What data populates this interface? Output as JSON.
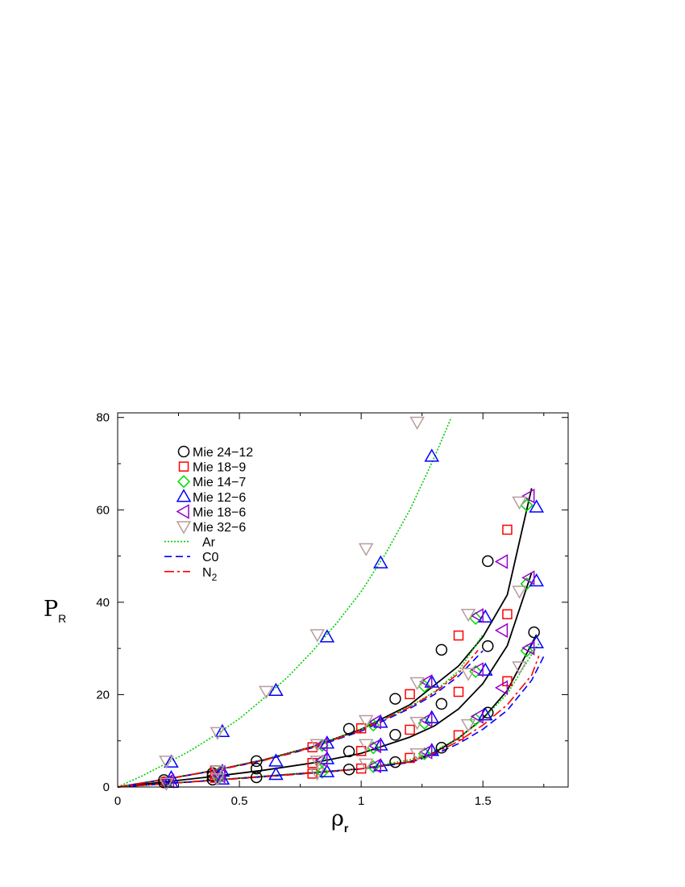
{
  "chart_data": {
    "type": "scatter",
    "title": "",
    "xlabel": "ρ",
    "xlabel_sub": "r",
    "ylabel": "P",
    "ylabel_sub": "R",
    "xlim": [
      0,
      1.85
    ],
    "ylim": [
      0,
      81
    ],
    "xticks": [
      0,
      0.5,
      1,
      1.5
    ],
    "xtick_labels": [
      "0",
      "0.5",
      "1",
      "1.5"
    ],
    "yticks": [
      0,
      20,
      40,
      60,
      80
    ],
    "ytick_labels": [
      "0",
      "20",
      "40",
      "60",
      "80"
    ],
    "grid": false,
    "legend_position": "top-left",
    "series": [
      {
        "name": "Mie 24-12",
        "label": "Mie 24−12",
        "marker": "circle",
        "color": "#000000",
        "points": [
          [
            0.19,
            1.0
          ],
          [
            0.19,
            1.5
          ],
          [
            0.39,
            1.6
          ],
          [
            0.39,
            2.4
          ],
          [
            0.39,
            3.0
          ],
          [
            0.57,
            2.1
          ],
          [
            0.57,
            4.0
          ],
          [
            0.57,
            5.6
          ],
          [
            0.95,
            3.8
          ],
          [
            0.95,
            7.7
          ],
          [
            0.95,
            12.6
          ],
          [
            1.14,
            5.4
          ],
          [
            1.14,
            11.3
          ],
          [
            1.14,
            19.1
          ],
          [
            1.33,
            8.5
          ],
          [
            1.33,
            18.0
          ],
          [
            1.33,
            29.7
          ],
          [
            1.52,
            16.1
          ],
          [
            1.52,
            30.5
          ],
          [
            1.52,
            48.9
          ],
          [
            1.71,
            33.5
          ]
        ]
      },
      {
        "name": "Mie 18-9",
        "label": "Mie 18−9",
        "marker": "square",
        "color": "#ff0000",
        "points": [
          [
            0.2,
            1.1
          ],
          [
            0.4,
            2.0
          ],
          [
            0.4,
            2.8
          ],
          [
            0.4,
            3.6
          ],
          [
            0.8,
            2.9
          ],
          [
            0.8,
            5.2
          ],
          [
            0.8,
            8.6
          ],
          [
            1.0,
            4.0
          ],
          [
            1.0,
            7.8
          ],
          [
            1.0,
            12.7
          ],
          [
            1.2,
            6.3
          ],
          [
            1.2,
            12.4
          ],
          [
            1.2,
            20.1
          ],
          [
            1.4,
            11.2
          ],
          [
            1.4,
            20.6
          ],
          [
            1.4,
            32.8
          ],
          [
            1.6,
            22.9
          ],
          [
            1.6,
            37.4
          ],
          [
            1.6,
            55.7
          ]
        ]
      },
      {
        "name": "Mie 14-7",
        "label": "Mie 14−7",
        "marker": "diamond",
        "color": "#00dd00",
        "points": [
          [
            0.21,
            1.2
          ],
          [
            0.42,
            2.2
          ],
          [
            0.42,
            3.2
          ],
          [
            0.84,
            3.2
          ],
          [
            0.84,
            5.6
          ],
          [
            0.84,
            9.0
          ],
          [
            1.05,
            4.4
          ],
          [
            1.05,
            8.5
          ],
          [
            1.05,
            13.4
          ],
          [
            1.26,
            7.2
          ],
          [
            1.26,
            13.8
          ],
          [
            1.26,
            21.8
          ],
          [
            1.47,
            14.6
          ],
          [
            1.47,
            25.0
          ],
          [
            1.47,
            36.5
          ],
          [
            1.68,
            29.5
          ],
          [
            1.68,
            44.0
          ],
          [
            1.68,
            61.0
          ]
        ]
      },
      {
        "name": "Mie 12-6",
        "label": "Mie 12−6",
        "marker": "triangle-up",
        "color": "#0000ff",
        "points": [
          [
            0.22,
            1.0
          ],
          [
            0.22,
            2.0
          ],
          [
            0.22,
            5.4
          ],
          [
            0.43,
            1.7
          ],
          [
            0.43,
            3.4
          ],
          [
            0.43,
            12.0
          ],
          [
            0.65,
            2.7
          ],
          [
            0.65,
            5.6
          ],
          [
            0.65,
            20.9
          ],
          [
            0.86,
            3.3
          ],
          [
            0.86,
            6.1
          ],
          [
            0.86,
            9.5
          ],
          [
            0.86,
            32.5
          ],
          [
            1.08,
            4.6
          ],
          [
            1.08,
            9.1
          ],
          [
            1.08,
            14.0
          ],
          [
            1.08,
            48.5
          ],
          [
            1.29,
            7.9
          ],
          [
            1.29,
            15.0
          ],
          [
            1.29,
            22.7
          ],
          [
            1.29,
            71.6
          ],
          [
            1.51,
            15.6
          ],
          [
            1.51,
            25.3
          ],
          [
            1.51,
            36.8
          ],
          [
            1.72,
            31.2
          ],
          [
            1.72,
            44.6
          ],
          [
            1.72,
            60.6
          ]
        ]
      },
      {
        "name": "Mie 18-6",
        "label": "Mie 18−6",
        "marker": "triangle-left",
        "color": "#9900cc",
        "points": [
          [
            0.21,
            1.3
          ],
          [
            0.42,
            2.4
          ],
          [
            0.42,
            3.2
          ],
          [
            0.84,
            5.8
          ],
          [
            0.84,
            9.1
          ],
          [
            1.06,
            4.6
          ],
          [
            1.06,
            8.9
          ],
          [
            1.06,
            14.1
          ],
          [
            1.27,
            7.6
          ],
          [
            1.27,
            14.5
          ],
          [
            1.27,
            22.8
          ],
          [
            1.48,
            15.3
          ],
          [
            1.48,
            25.4
          ],
          [
            1.48,
            37.1
          ],
          [
            1.58,
            21.5
          ],
          [
            1.58,
            33.9
          ],
          [
            1.58,
            48.8
          ],
          [
            1.69,
            30.1
          ],
          [
            1.69,
            45.3
          ],
          [
            1.69,
            63.0
          ]
        ]
      },
      {
        "name": "Mie 32-6",
        "label": "Mie 32−6",
        "marker": "triangle-down",
        "color": "#b89c9c",
        "points": [
          [
            0.2,
            0.8
          ],
          [
            0.2,
            5.6
          ],
          [
            0.41,
            1.8
          ],
          [
            0.41,
            3.5
          ],
          [
            0.41,
            11.8
          ],
          [
            0.61,
            20.7
          ],
          [
            0.82,
            3.0
          ],
          [
            0.82,
            5.6
          ],
          [
            0.82,
            9.2
          ],
          [
            0.82,
            33.0
          ],
          [
            1.02,
            5.0
          ],
          [
            1.02,
            9.2
          ],
          [
            1.02,
            14.4
          ],
          [
            1.02,
            51.6
          ],
          [
            1.23,
            7.2
          ],
          [
            1.23,
            14.0
          ],
          [
            1.23,
            22.6
          ],
          [
            1.23,
            79.0
          ],
          [
            1.44,
            13.5
          ],
          [
            1.44,
            24.6
          ],
          [
            1.44,
            37.4
          ],
          [
            1.65,
            26.0
          ],
          [
            1.65,
            42.4
          ],
          [
            1.65,
            61.7
          ]
        ]
      }
    ],
    "fit_lines": [
      {
        "name": "fit-upper",
        "color": "#000000",
        "dash": "none",
        "points": [
          [
            0,
            0
          ],
          [
            0.2,
            1.72
          ],
          [
            0.4,
            3.62
          ],
          [
            0.6,
            5.88
          ],
          [
            0.8,
            8.73
          ],
          [
            1.0,
            12.5
          ],
          [
            1.2,
            17.8
          ],
          [
            1.4,
            26.2
          ],
          [
            1.5,
            32.5
          ],
          [
            1.6,
            41.6
          ],
          [
            1.7,
            64.7
          ]
        ]
      },
      {
        "name": "fit-middle",
        "color": "#000000",
        "dash": "none",
        "points": [
          [
            0,
            0
          ],
          [
            0.2,
            1.15
          ],
          [
            0.4,
            2.33
          ],
          [
            0.6,
            3.63
          ],
          [
            0.8,
            5.2
          ],
          [
            1.0,
            7.3
          ],
          [
            1.2,
            10.8
          ],
          [
            1.3,
            13.2
          ],
          [
            1.4,
            16.9
          ],
          [
            1.5,
            22.4
          ],
          [
            1.6,
            30.6
          ],
          [
            1.7,
            46.4
          ]
        ]
      },
      {
        "name": "fit-lower",
        "color": "#000000",
        "dash": "none",
        "points": [
          [
            0,
            0
          ],
          [
            0.2,
            0.75
          ],
          [
            0.4,
            1.5
          ],
          [
            0.6,
            2.3
          ],
          [
            0.8,
            3.12
          ],
          [
            1.0,
            3.95
          ],
          [
            1.2,
            5.47
          ],
          [
            1.3,
            7.44
          ],
          [
            1.4,
            10.6
          ],
          [
            1.5,
            14.8
          ],
          [
            1.6,
            20.9
          ],
          [
            1.72,
            33.0
          ]
        ]
      },
      {
        "name": "Ar",
        "label": "Ar",
        "color": "#00cc00",
        "dash": "2,2",
        "points": [
          [
            0,
            0
          ],
          [
            0.1,
            2.4
          ],
          [
            0.2,
            5.1
          ],
          [
            0.3,
            7.9
          ],
          [
            0.4,
            11.2
          ],
          [
            0.5,
            14.8
          ],
          [
            0.6,
            19.2
          ],
          [
            0.7,
            23.9
          ],
          [
            0.8,
            29.4
          ],
          [
            0.9,
            35.5
          ],
          [
            1.0,
            42.3
          ],
          [
            1.1,
            50.5
          ],
          [
            1.2,
            60.0
          ],
          [
            1.3,
            71.3
          ],
          [
            1.37,
            80.0
          ]
        ]
      },
      {
        "name": "Ar-middle",
        "color": "#00cc00",
        "dash": "2,2",
        "points": [
          [
            0,
            0
          ],
          [
            0.2,
            1.73
          ],
          [
            0.4,
            3.63
          ],
          [
            0.6,
            5.9
          ],
          [
            0.8,
            8.75
          ],
          [
            1.0,
            12.5
          ],
          [
            1.2,
            17.4
          ],
          [
            1.3,
            20.6
          ],
          [
            1.4,
            25.1
          ],
          [
            1.5,
            33.0
          ]
        ]
      },
      {
        "name": "Ar-lower",
        "color": "#00cc00",
        "dash": "2,2",
        "points": [
          [
            0,
            0
          ],
          [
            0.2,
            0.75
          ],
          [
            0.4,
            1.5
          ],
          [
            0.6,
            2.3
          ],
          [
            0.8,
            3.12
          ],
          [
            1.0,
            3.95
          ],
          [
            1.2,
            5.9
          ],
          [
            1.3,
            7.8
          ],
          [
            1.4,
            10.6
          ],
          [
            1.5,
            14.7
          ],
          [
            1.6,
            20.2
          ],
          [
            1.7,
            28.7
          ],
          [
            1.73,
            31.0
          ]
        ]
      },
      {
        "name": "C0",
        "label": "C0",
        "color": "#0000ff",
        "dash": "9,5",
        "points": [
          [
            0,
            0
          ],
          [
            0.2,
            1.7
          ],
          [
            0.4,
            3.55
          ],
          [
            0.6,
            5.75
          ],
          [
            0.8,
            8.5
          ],
          [
            1.0,
            12.1
          ],
          [
            1.2,
            17.0
          ],
          [
            1.3,
            20.0
          ],
          [
            1.4,
            24.0
          ],
          [
            1.5,
            29.5
          ]
        ]
      },
      {
        "name": "C0-lower",
        "color": "#0000ff",
        "dash": "9,5",
        "points": [
          [
            0,
            0
          ],
          [
            0.2,
            0.72
          ],
          [
            0.4,
            1.45
          ],
          [
            0.6,
            2.2
          ],
          [
            0.8,
            3.0
          ],
          [
            1.0,
            3.9
          ],
          [
            1.2,
            5.3
          ],
          [
            1.3,
            7.0
          ],
          [
            1.4,
            9.4
          ],
          [
            1.5,
            12.5
          ],
          [
            1.6,
            16.6
          ],
          [
            1.7,
            23.1
          ],
          [
            1.75,
            28.3
          ]
        ]
      },
      {
        "name": "N2",
        "label": "N",
        "label_sub": "2",
        "color": "#ff0000",
        "dash": "12,4,3,4",
        "points": [
          [
            0,
            0
          ],
          [
            0.2,
            1.71
          ],
          [
            0.4,
            3.58
          ],
          [
            0.6,
            5.8
          ],
          [
            0.8,
            8.6
          ],
          [
            1.0,
            12.3
          ],
          [
            1.2,
            17.3
          ],
          [
            1.3,
            20.4
          ],
          [
            1.4,
            24.6
          ],
          [
            1.48,
            29.6
          ]
        ]
      },
      {
        "name": "N2-lower",
        "color": "#ff0000",
        "dash": "12,4,3,4",
        "points": [
          [
            0,
            0
          ],
          [
            0.2,
            0.73
          ],
          [
            0.4,
            1.47
          ],
          [
            0.6,
            2.25
          ],
          [
            0.8,
            3.06
          ],
          [
            1.0,
            3.92
          ],
          [
            1.2,
            5.5
          ],
          [
            1.3,
            7.3
          ],
          [
            1.4,
            9.9
          ],
          [
            1.5,
            13.4
          ],
          [
            1.6,
            17.8
          ],
          [
            1.7,
            24.2
          ],
          [
            1.73,
            28.4
          ]
        ]
      }
    ]
  }
}
